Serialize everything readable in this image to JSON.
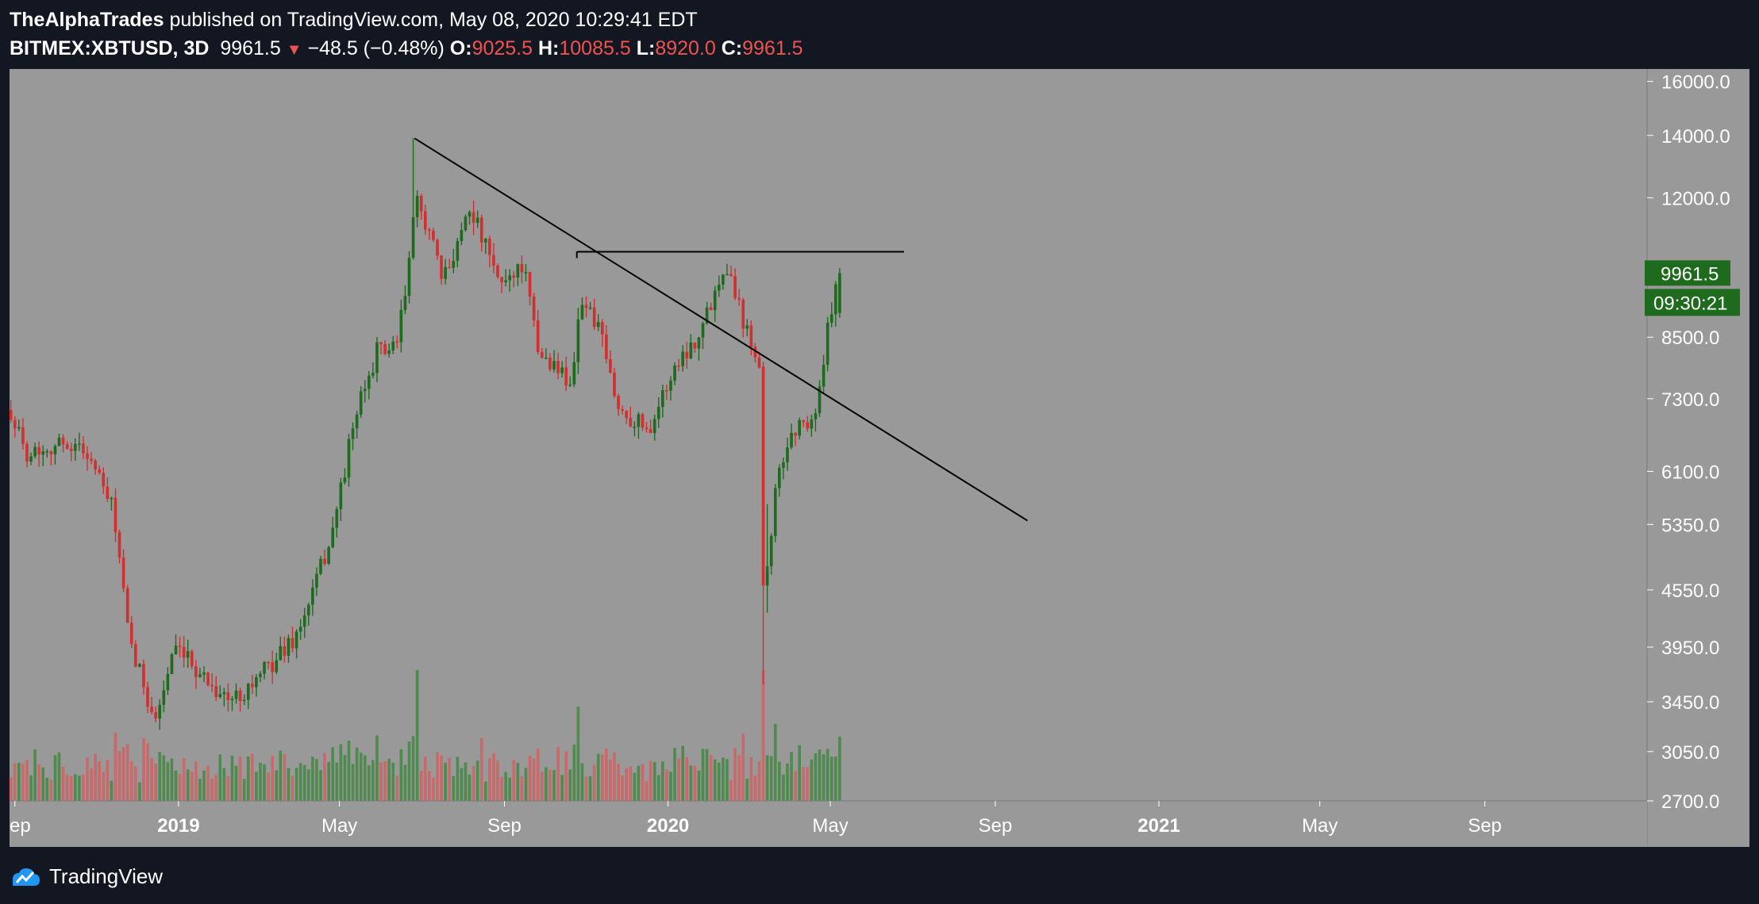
{
  "header": {
    "author": "TheAlphaTrades",
    "published_text": " published on TradingView.com, May 08, 2020 10:29:41 EDT",
    "symbol": "BITMEX:XBTUSD, 3D",
    "last": "9961.5",
    "change": "−48.5 (−0.48%)",
    "o_label": "O:",
    "o_value": "9025.5",
    "h_label": "H:",
    "h_value": "10085.5",
    "l_label": "L:",
    "l_value": "8920.0",
    "c_label": "C:",
    "c_value": "9961.5"
  },
  "price_tag": {
    "price": "9961.5",
    "countdown": "09:30:21"
  },
  "footer": {
    "brand": "TradingView"
  },
  "colors": {
    "background": "#131722",
    "pane": "#999999",
    "up": "#1e6b1e",
    "down": "#d32f2f",
    "vol_up": "#4f8a4f",
    "vol_down": "#c96a6a",
    "axis_text": "#ffffff",
    "trendline": "#000000"
  },
  "chart_data": {
    "type": "candlestick",
    "timeframe": "3D",
    "y_scale": "log",
    "ylim": [
      2700,
      16500
    ],
    "yticks": [
      16000,
      14000,
      12000,
      9961.5,
      8500,
      7300,
      6100,
      5350,
      4550,
      3950,
      3450,
      3050,
      2700
    ],
    "ytick_labels": [
      "16000.0",
      "14000.0",
      "12000.0",
      "9961.5",
      "8500.0",
      "7300.0",
      "6100.0",
      "5350.0",
      "4550.0",
      "3950.0",
      "3450.0",
      "3050.0",
      "2700.0"
    ],
    "xlim": [
      "2018-08-28",
      "2021-12-31"
    ],
    "xticks": [
      "2018-09-01",
      "2019-01-01",
      "2019-05-01",
      "2019-09-01",
      "2020-01-01",
      "2020-05-01",
      "2020-09-01",
      "2021-01-01",
      "2021-05-01",
      "2021-09-01"
    ],
    "xtick_labels": [
      "ep",
      "2019",
      "May",
      "Sep",
      "2020",
      "May",
      "Sep",
      "2021",
      "May",
      "Sep"
    ],
    "anchors": [
      {
        "date": "2018-08-29",
        "close": 7100
      },
      {
        "date": "2018-09-08",
        "close": 6400
      },
      {
        "date": "2018-10-10",
        "close": 6550
      },
      {
        "date": "2018-10-25",
        "close": 6400
      },
      {
        "date": "2018-11-14",
        "close": 5500
      },
      {
        "date": "2018-11-25",
        "close": 4000
      },
      {
        "date": "2018-12-15",
        "close": 3300
      },
      {
        "date": "2018-12-28",
        "close": 3900
      },
      {
        "date": "2019-01-10",
        "close": 3800
      },
      {
        "date": "2019-02-08",
        "close": 3450
      },
      {
        "date": "2019-03-01",
        "close": 3650
      },
      {
        "date": "2019-04-01",
        "close": 4100
      },
      {
        "date": "2019-04-25",
        "close": 5200
      },
      {
        "date": "2019-05-12",
        "close": 6900
      },
      {
        "date": "2019-05-30",
        "close": 8300
      },
      {
        "date": "2019-06-12",
        "close": 8200
      },
      {
        "date": "2019-06-20",
        "close": 9700
      },
      {
        "date": "2019-06-27",
        "close": 11900
      },
      {
        "date": "2019-07-05",
        "close": 11300
      },
      {
        "date": "2019-07-17",
        "close": 9700
      },
      {
        "date": "2019-08-06",
        "close": 11800
      },
      {
        "date": "2019-08-28",
        "close": 9700
      },
      {
        "date": "2019-09-15",
        "close": 10200
      },
      {
        "date": "2019-09-26",
        "close": 8200
      },
      {
        "date": "2019-10-22",
        "close": 7600
      },
      {
        "date": "2019-10-27",
        "close": 9400
      },
      {
        "date": "2019-11-10",
        "close": 8700
      },
      {
        "date": "2019-11-25",
        "close": 7100
      },
      {
        "date": "2019-12-18",
        "close": 6800
      },
      {
        "date": "2020-01-08",
        "close": 8000
      },
      {
        "date": "2020-01-25",
        "close": 8600
      },
      {
        "date": "2020-02-13",
        "close": 10300
      },
      {
        "date": "2020-02-28",
        "close": 8700
      },
      {
        "date": "2020-03-10",
        "close": 8000
      },
      {
        "date": "2020-03-13",
        "close": 4600
      },
      {
        "date": "2020-03-22",
        "close": 5900
      },
      {
        "date": "2020-04-01",
        "close": 6700
      },
      {
        "date": "2020-04-20",
        "close": 7000
      },
      {
        "date": "2020-04-30",
        "close": 8800
      },
      {
        "date": "2020-05-08",
        "close": 9961.5
      }
    ],
    "volume": {
      "relative_peaks": [
        {
          "date": "2019-06-27",
          "value": 1.0
        },
        {
          "date": "2020-03-13",
          "value": 0.6
        },
        {
          "date": "2019-10-27",
          "value": 0.72
        }
      ]
    },
    "trendlines": [
      {
        "from": {
          "date": "2019-06-26",
          "price": 13900
        },
        "to": {
          "date": "2020-09-25",
          "price": 5400
        }
      },
      {
        "from": {
          "date": "2019-10-25",
          "price": 10500
        },
        "to": {
          "date": "2020-06-25",
          "price": 10500
        }
      }
    ]
  }
}
